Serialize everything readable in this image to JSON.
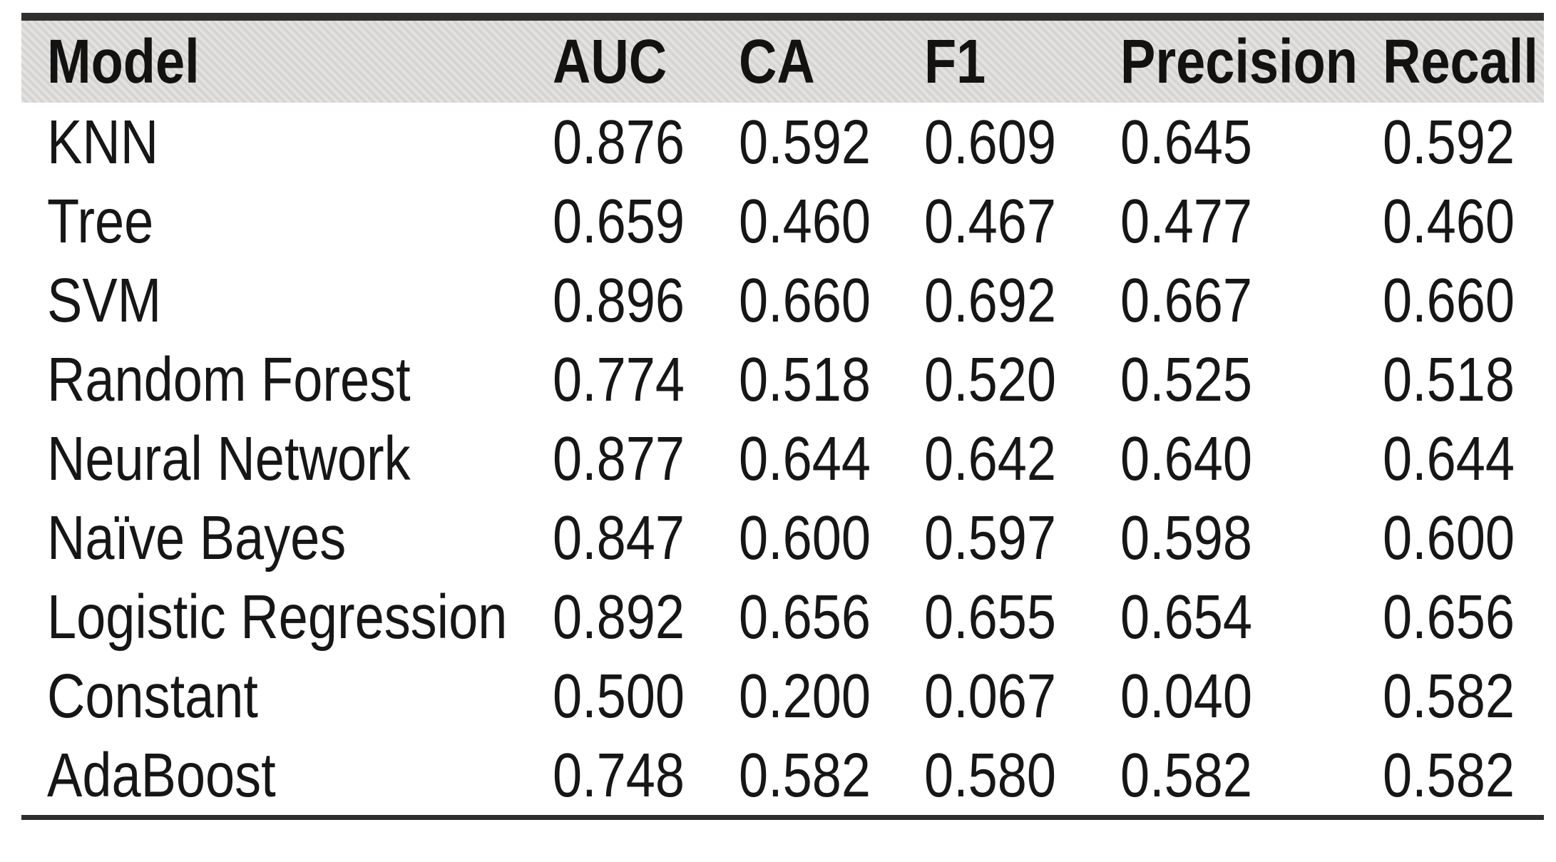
{
  "table": {
    "columns": [
      "Model",
      "AUC",
      "CA",
      "F1",
      "Precision",
      "Recall"
    ],
    "rows": [
      {
        "model": "KNN",
        "values": [
          "0.876",
          "0.592",
          "0.609",
          "0.645",
          "0.592"
        ]
      },
      {
        "model": "Tree",
        "values": [
          "0.659",
          "0.460",
          "0.467",
          "0.477",
          "0.460"
        ]
      },
      {
        "model": "SVM",
        "values": [
          "0.896",
          "0.660",
          "0.692",
          "0.667",
          "0.660"
        ]
      },
      {
        "model": "Random Forest",
        "values": [
          "0.774",
          "0.518",
          "0.520",
          "0.525",
          "0.518"
        ]
      },
      {
        "model": "Neural Network",
        "values": [
          "0.877",
          "0.644",
          "0.642",
          "0.640",
          "0.644"
        ]
      },
      {
        "model": "Naïve Bayes",
        "values": [
          "0.847",
          "0.600",
          "0.597",
          "0.598",
          "0.600"
        ]
      },
      {
        "model": "Logistic Regression",
        "values": [
          "0.892",
          "0.656",
          "0.655",
          "0.654",
          "0.656"
        ]
      },
      {
        "model": "Constant",
        "values": [
          "0.500",
          "0.200",
          "0.067",
          "0.040",
          "0.582"
        ]
      },
      {
        "model": "AdaBoost",
        "values": [
          "0.748",
          "0.582",
          "0.580",
          "0.582",
          "0.582"
        ]
      }
    ]
  },
  "colors": {
    "header_bg": "#dbdad7",
    "rule": "#2f2f2e",
    "text": "#161616",
    "background": "#ffffff"
  },
  "chart_data": {
    "type": "table",
    "columns": [
      "Model",
      "AUC",
      "CA",
      "F1",
      "Precision",
      "Recall"
    ],
    "rows": [
      [
        "KNN",
        0.876,
        0.592,
        0.609,
        0.645,
        0.592
      ],
      [
        "Tree",
        0.659,
        0.46,
        0.467,
        0.477,
        0.46
      ],
      [
        "SVM",
        0.896,
        0.66,
        0.692,
        0.667,
        0.66
      ],
      [
        "Random Forest",
        0.774,
        0.518,
        0.52,
        0.525,
        0.518
      ],
      [
        "Neural Network",
        0.877,
        0.644,
        0.642,
        0.64,
        0.644
      ],
      [
        "Naïve Bayes",
        0.847,
        0.6,
        0.597,
        0.598,
        0.6
      ],
      [
        "Logistic Regression",
        0.892,
        0.656,
        0.655,
        0.654,
        0.656
      ],
      [
        "Constant",
        0.5,
        0.2,
        0.067,
        0.04,
        0.582
      ],
      [
        "AdaBoost",
        0.748,
        0.582,
        0.58,
        0.582,
        0.582
      ]
    ],
    "layout": {
      "header_background": "#dbdad7",
      "top_rule": true,
      "bottom_rule": true,
      "grid": false
    }
  }
}
